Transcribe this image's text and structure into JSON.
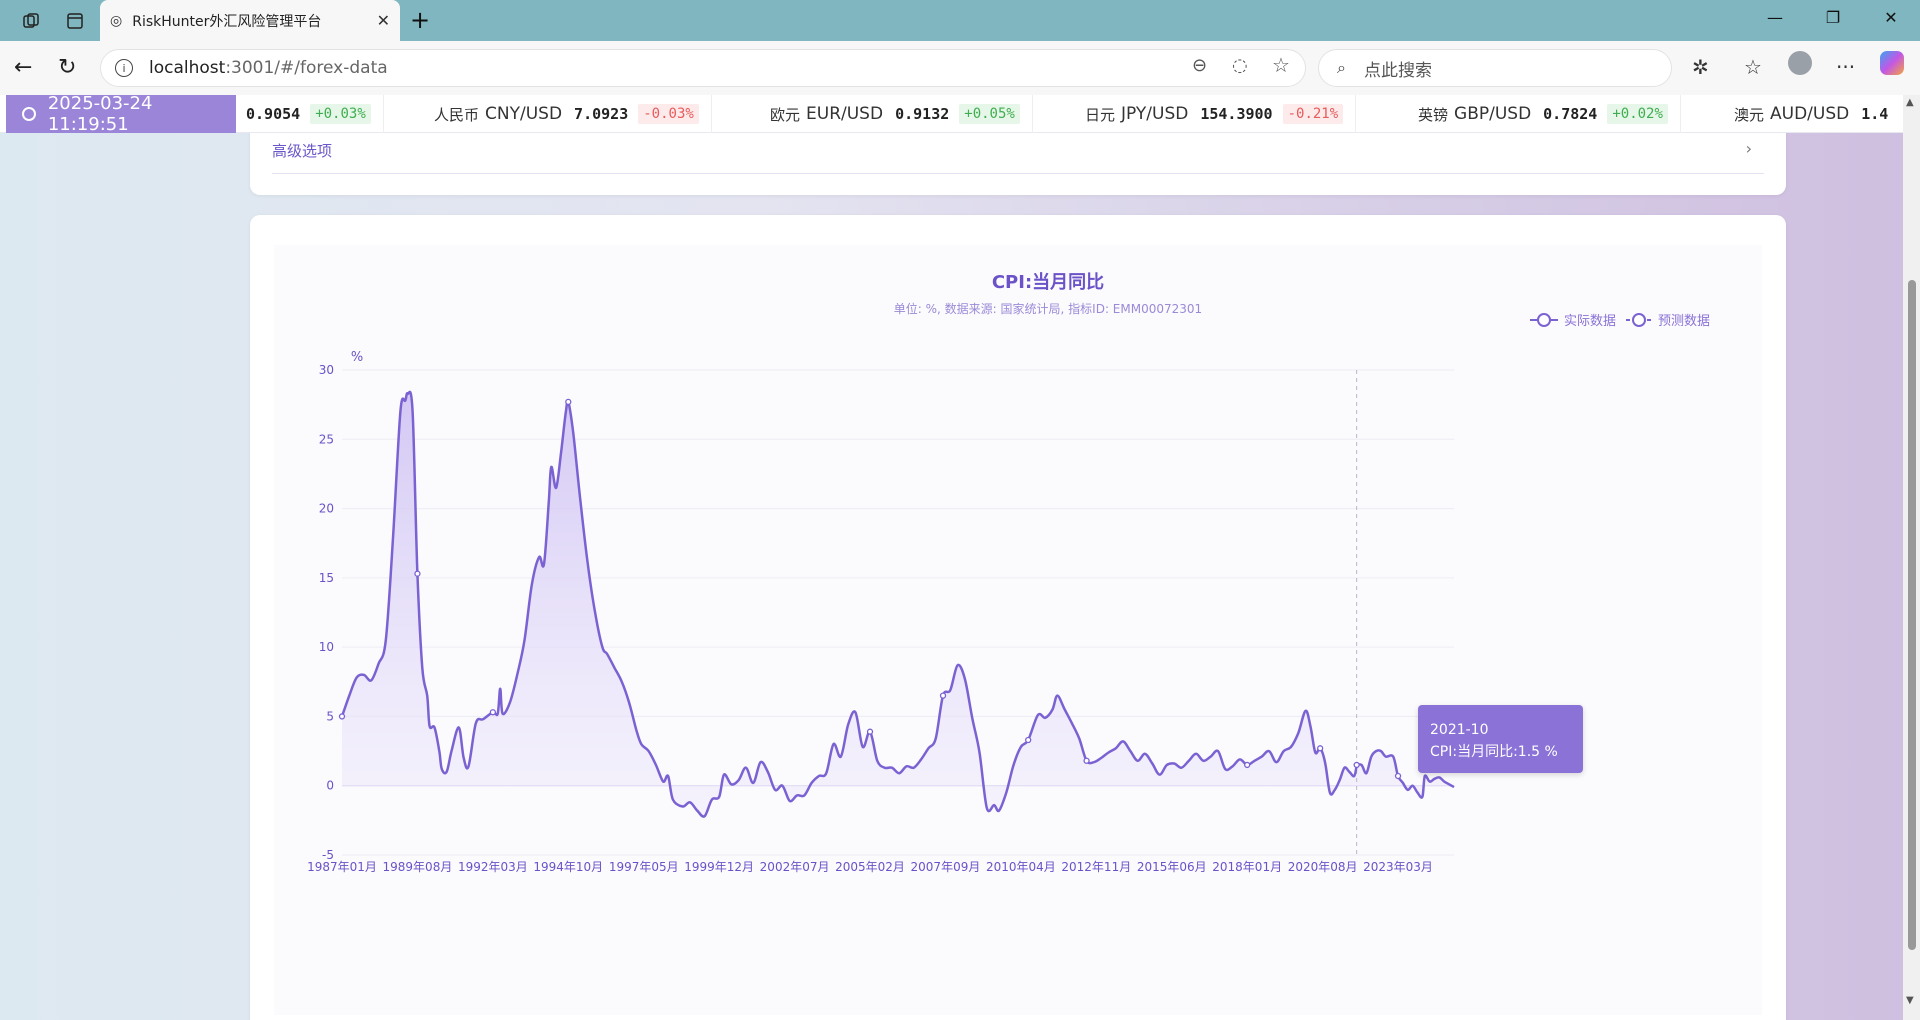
{
  "browser": {
    "tab_title": "RiskHunter外汇风险管理平台",
    "url_host": "localhost",
    "url_rest": ":3001/#/forex-data",
    "search_placeholder": "点此搜索"
  },
  "ticker": {
    "time": "2025-03-24 11:19:51",
    "items": [
      {
        "name": "",
        "pair": "",
        "value": "0.9054",
        "change": "+0.03%",
        "dir": "up"
      },
      {
        "name": "人民币",
        "pair": "CNY/USD",
        "value": "7.0923",
        "change": "-0.03%",
        "dir": "down"
      },
      {
        "name": "欧元",
        "pair": "EUR/USD",
        "value": "0.9132",
        "change": "+0.05%",
        "dir": "up"
      },
      {
        "name": "日元",
        "pair": "JPY/USD",
        "value": "154.3900",
        "change": "-0.21%",
        "dir": "down"
      },
      {
        "name": "英镑",
        "pair": "GBP/USD",
        "value": "0.7824",
        "change": "+0.02%",
        "dir": "up"
      },
      {
        "name": "澳元",
        "pair": "AUD/USD",
        "value": "1.4",
        "change": "",
        "dir": "up"
      }
    ]
  },
  "advanced_label": "高级选项",
  "tooltip": {
    "date": "2021-10",
    "label": "CPI:当月同比:",
    "value": "1.5 %"
  },
  "chart_data": {
    "type": "line",
    "title": "CPI:当月同比",
    "subtitle": "单位: %, 数据来源:  国家统计局, 指标ID:  EMM00072301",
    "ylabel": "%",
    "ylim": [
      -5,
      30
    ],
    "yticks": [
      -5,
      0,
      5,
      10,
      15,
      20,
      25,
      30
    ],
    "xlim": [
      "1987-01",
      "2025-02"
    ],
    "forecast_start": "2021-10",
    "legend": {
      "position": "top-right",
      "entries": [
        "实际数据",
        "预测数据"
      ]
    },
    "colors": {
      "line": "#7b62d3",
      "fill": "#d9cff5"
    },
    "xticks": [
      "1987年01月",
      "1989年08月",
      "1992年03月",
      "1994年10月",
      "1997年05月",
      "1999年12月",
      "2002年07月",
      "2005年02月",
      "2007年09月",
      "2010年04月",
      "2012年11月",
      "2015年06月",
      "2018年01月",
      "2020年08月",
      "2023年03月"
    ],
    "series": [
      {
        "name": "实际数据",
        "points": [
          [
            "1987-01",
            5.0
          ],
          [
            "1987-04",
            6.5
          ],
          [
            "1987-07",
            7.8
          ],
          [
            "1987-10",
            8.0
          ],
          [
            "1988-01",
            7.6
          ],
          [
            "1988-04",
            8.8
          ],
          [
            "1988-07",
            10.5
          ],
          [
            "1988-10",
            18.0
          ],
          [
            "1989-01",
            27.0
          ],
          [
            "1989-03",
            27.8
          ],
          [
            "1989-04",
            28.3
          ],
          [
            "1989-06",
            27.0
          ],
          [
            "1989-08",
            15.3
          ],
          [
            "1989-10",
            8.5
          ],
          [
            "1989-12",
            6.5
          ],
          [
            "1990-01",
            4.3
          ],
          [
            "1990-03",
            4.2
          ],
          [
            "1990-05",
            2.5
          ],
          [
            "1990-06",
            1.2
          ],
          [
            "1990-08",
            1.0
          ],
          [
            "1990-10",
            2.5
          ],
          [
            "1991-01",
            4.2
          ],
          [
            "1991-03",
            2.0
          ],
          [
            "1991-05",
            1.4
          ],
          [
            "1991-08",
            4.5
          ],
          [
            "1991-11",
            4.8
          ],
          [
            "1992-03",
            5.3
          ],
          [
            "1992-05",
            5.2
          ],
          [
            "1992-06",
            7.0
          ],
          [
            "1992-07",
            5.2
          ],
          [
            "1992-10",
            6.0
          ],
          [
            "1993-01",
            8.0
          ],
          [
            "1993-04",
            10.5
          ],
          [
            "1993-07",
            14.5
          ],
          [
            "1993-10",
            16.5
          ],
          [
            "1993-12",
            16.0
          ],
          [
            "1994-02",
            20.5
          ],
          [
            "1994-03",
            23.0
          ],
          [
            "1994-05",
            21.5
          ],
          [
            "1994-07",
            24.0
          ],
          [
            "1994-09",
            27.0
          ],
          [
            "1994-10",
            27.7
          ],
          [
            "1994-12",
            25.5
          ],
          [
            "1995-03",
            20.5
          ],
          [
            "1995-06",
            16.0
          ],
          [
            "1995-09",
            12.5
          ],
          [
            "1995-12",
            10.0
          ],
          [
            "1996-02",
            9.5
          ],
          [
            "1996-05",
            8.5
          ],
          [
            "1996-08",
            7.5
          ],
          [
            "1996-11",
            6.0
          ],
          [
            "1997-02",
            4.0
          ],
          [
            "1997-04",
            3.0
          ],
          [
            "1997-07",
            2.5
          ],
          [
            "1997-10",
            1.5
          ],
          [
            "1998-01",
            0.3
          ],
          [
            "1998-03",
            0.7
          ],
          [
            "1998-05",
            -1.0
          ],
          [
            "1998-09",
            -1.5
          ],
          [
            "1998-12",
            -1.2
          ],
          [
            "1999-03",
            -1.8
          ],
          [
            "1999-06",
            -2.2
          ],
          [
            "1999-09",
            -1.0
          ],
          [
            "1999-12",
            -0.8
          ],
          [
            "2000-02",
            0.8
          ],
          [
            "2000-05",
            0.1
          ],
          [
            "2000-08",
            0.4
          ],
          [
            "2000-11",
            1.3
          ],
          [
            "2001-02",
            0.2
          ],
          [
            "2001-05",
            1.7
          ],
          [
            "2001-08",
            1.0
          ],
          [
            "2001-11",
            -0.3
          ],
          [
            "2002-02",
            0.0
          ],
          [
            "2002-05",
            -1.1
          ],
          [
            "2002-08",
            -0.7
          ],
          [
            "2002-11",
            -0.7
          ],
          [
            "2003-02",
            0.2
          ],
          [
            "2003-05",
            0.7
          ],
          [
            "2003-08",
            0.9
          ],
          [
            "2003-11",
            3.0
          ],
          [
            "2004-02",
            2.1
          ],
          [
            "2004-05",
            4.4
          ],
          [
            "2004-08",
            5.3
          ],
          [
            "2004-11",
            2.8
          ],
          [
            "2005-02",
            3.9
          ],
          [
            "2005-05",
            1.8
          ],
          [
            "2005-08",
            1.3
          ],
          [
            "2005-11",
            1.3
          ],
          [
            "2006-02",
            0.9
          ],
          [
            "2006-05",
            1.4
          ],
          [
            "2006-08",
            1.3
          ],
          [
            "2006-11",
            1.9
          ],
          [
            "2007-02",
            2.7
          ],
          [
            "2007-05",
            3.4
          ],
          [
            "2007-08",
            6.5
          ],
          [
            "2007-11",
            6.9
          ],
          [
            "2008-02",
            8.7
          ],
          [
            "2008-05",
            7.7
          ],
          [
            "2008-08",
            4.9
          ],
          [
            "2008-11",
            2.4
          ],
          [
            "2009-02",
            -1.6
          ],
          [
            "2009-05",
            -1.4
          ],
          [
            "2009-07",
            -1.8
          ],
          [
            "2009-10",
            -0.5
          ],
          [
            "2010-01",
            1.5
          ],
          [
            "2010-04",
            2.8
          ],
          [
            "2010-07",
            3.3
          ],
          [
            "2010-11",
            5.1
          ],
          [
            "2011-02",
            4.9
          ],
          [
            "2011-05",
            5.5
          ],
          [
            "2011-07",
            6.5
          ],
          [
            "2011-10",
            5.5
          ],
          [
            "2012-01",
            4.5
          ],
          [
            "2012-04",
            3.4
          ],
          [
            "2012-07",
            1.8
          ],
          [
            "2012-10",
            1.7
          ],
          [
            "2013-01",
            2.0
          ],
          [
            "2013-04",
            2.4
          ],
          [
            "2013-07",
            2.7
          ],
          [
            "2013-10",
            3.2
          ],
          [
            "2014-01",
            2.5
          ],
          [
            "2014-04",
            1.8
          ],
          [
            "2014-07",
            2.3
          ],
          [
            "2014-10",
            1.6
          ],
          [
            "2015-01",
            0.8
          ],
          [
            "2015-04",
            1.5
          ],
          [
            "2015-07",
            1.6
          ],
          [
            "2015-10",
            1.3
          ],
          [
            "2016-01",
            1.8
          ],
          [
            "2016-04",
            2.3
          ],
          [
            "2016-07",
            1.8
          ],
          [
            "2016-10",
            2.1
          ],
          [
            "2017-01",
            2.5
          ],
          [
            "2017-04",
            1.2
          ],
          [
            "2017-07",
            1.4
          ],
          [
            "2017-10",
            1.9
          ],
          [
            "2018-01",
            1.5
          ],
          [
            "2018-04",
            1.8
          ],
          [
            "2018-07",
            2.1
          ],
          [
            "2018-10",
            2.5
          ],
          [
            "2019-01",
            1.7
          ],
          [
            "2019-04",
            2.5
          ],
          [
            "2019-07",
            2.8
          ],
          [
            "2019-10",
            3.8
          ],
          [
            "2020-01",
            5.4
          ],
          [
            "2020-03",
            4.3
          ],
          [
            "2020-05",
            2.4
          ],
          [
            "2020-07",
            2.7
          ],
          [
            "2020-09",
            1.7
          ],
          [
            "2020-11",
            -0.5
          ],
          [
            "2021-01",
            -0.3
          ],
          [
            "2021-03",
            0.4
          ],
          [
            "2021-05",
            1.3
          ],
          [
            "2021-07",
            1.0
          ],
          [
            "2021-09",
            0.7
          ],
          [
            "2021-10",
            1.5
          ]
        ]
      },
      {
        "name": "预测数据",
        "points": [
          [
            "2021-10",
            1.5
          ],
          [
            "2021-12",
            1.5
          ],
          [
            "2022-02",
            0.9
          ],
          [
            "2022-04",
            2.1
          ],
          [
            "2022-06",
            2.5
          ],
          [
            "2022-08",
            2.5
          ],
          [
            "2022-10",
            2.1
          ],
          [
            "2023-01",
            2.1
          ],
          [
            "2023-03",
            0.7
          ],
          [
            "2023-05",
            0.2
          ],
          [
            "2023-07",
            -0.3
          ],
          [
            "2023-09",
            0.0
          ],
          [
            "2023-11",
            -0.5
          ],
          [
            "2024-01",
            -0.8
          ],
          [
            "2024-02",
            0.7
          ],
          [
            "2024-04",
            0.3
          ],
          [
            "2024-06",
            0.5
          ],
          [
            "2024-08",
            0.6
          ],
          [
            "2024-10",
            0.3
          ],
          [
            "2024-12",
            0.1
          ],
          [
            "2025-02",
            -0.1
          ]
        ]
      }
    ]
  }
}
